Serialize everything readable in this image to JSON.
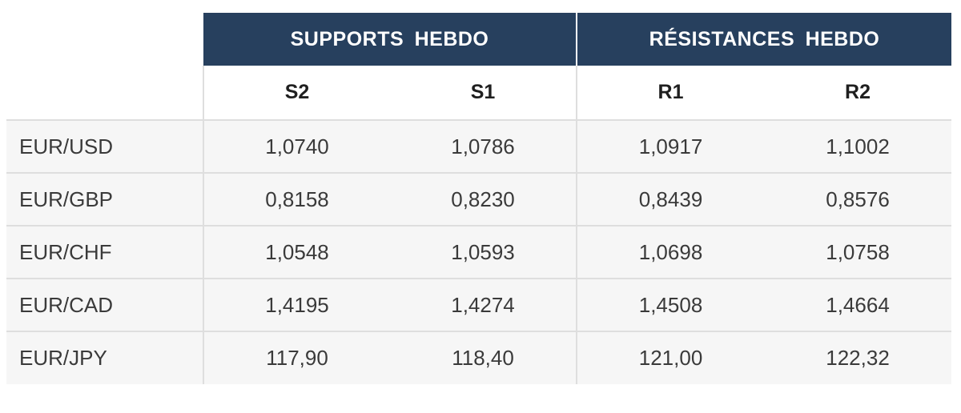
{
  "table": {
    "group_headers": {
      "supports": "SUPPORTS  HEBDO",
      "resistances": "RÉSISTANCES  HEBDO"
    },
    "sub_headers": [
      "S2",
      "S1",
      "R1",
      "R2"
    ],
    "rows": [
      {
        "pair": "EUR/USD",
        "values": [
          "1,0740",
          "1,0786",
          "1,0917",
          "1,1002"
        ]
      },
      {
        "pair": "EUR/GBP",
        "values": [
          "0,8158",
          "0,8230",
          "0,8439",
          "0,8576"
        ]
      },
      {
        "pair": "EUR/CHF",
        "values": [
          "1,0548",
          "1,0593",
          "1,0698",
          "1,0758"
        ]
      },
      {
        "pair": "EUR/CAD",
        "values": [
          "1,4195",
          "1,4274",
          "1,4508",
          "1,4664"
        ]
      },
      {
        "pair": "EUR/JPY",
        "values": [
          "117,90",
          "118,40",
          "121,00",
          "122,32"
        ]
      }
    ],
    "colors": {
      "header_bg": "#27405e",
      "header_text": "#ffffff",
      "row_bg": "#f6f6f6",
      "rule": "#dedede"
    }
  }
}
